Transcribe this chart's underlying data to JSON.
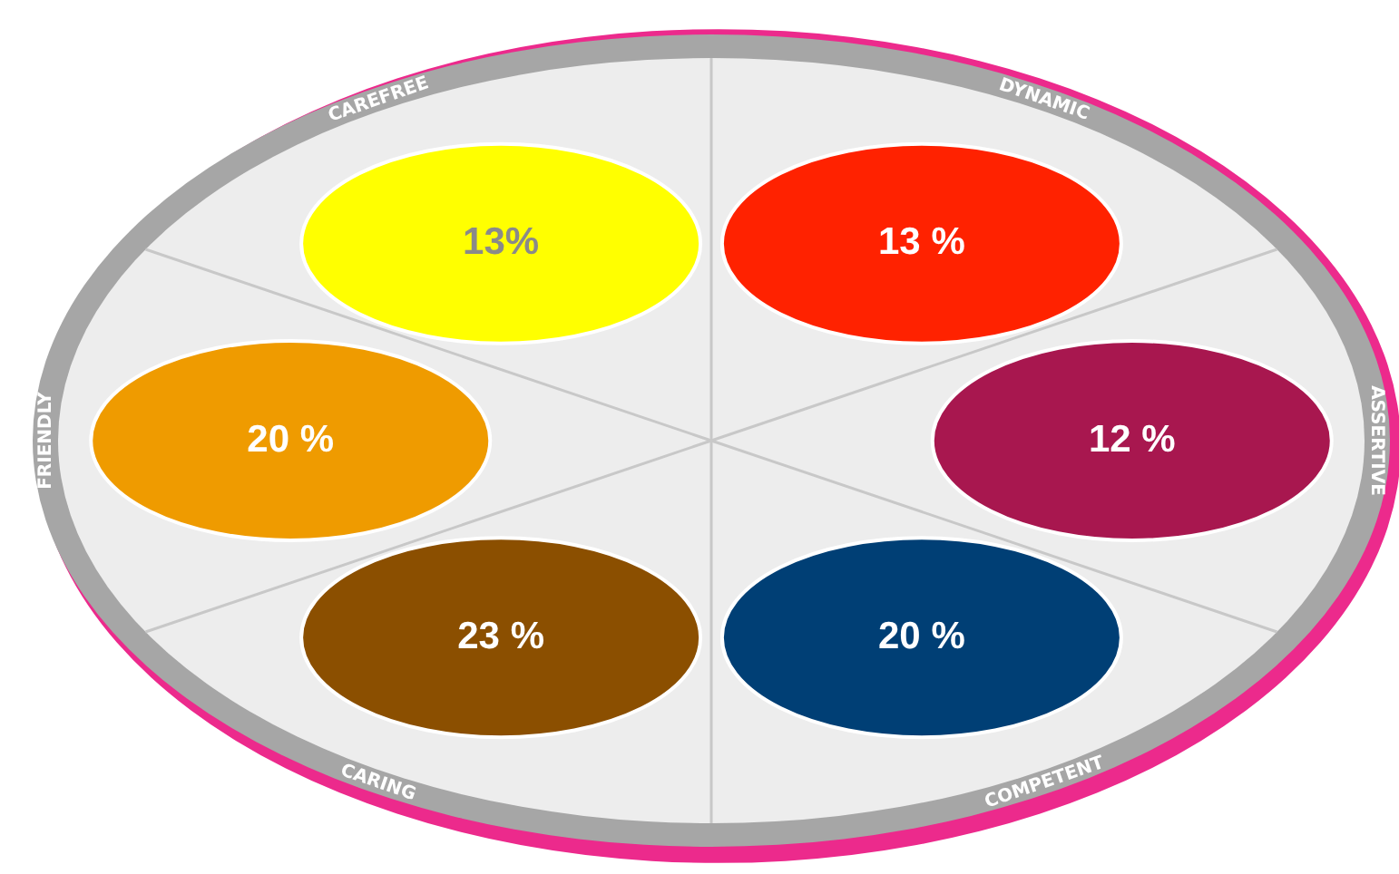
{
  "chart_data": {
    "type": "other",
    "categories": [
      "CAREFREE",
      "DYNAMIC",
      "ASSERTIVE",
      "COMPETENT",
      "CARING",
      "FRIENDLY"
    ],
    "values": [
      13,
      13,
      12,
      20,
      23,
      20
    ],
    "value_labels": [
      "13%",
      "13 %",
      "12 %",
      "20 %",
      "23 %",
      "20 %"
    ],
    "colors": [
      "#ffff00",
      "#ff2200",
      "#a8174f",
      "#003f75",
      "#8b4f00",
      "#ef9b00"
    ]
  }
}
